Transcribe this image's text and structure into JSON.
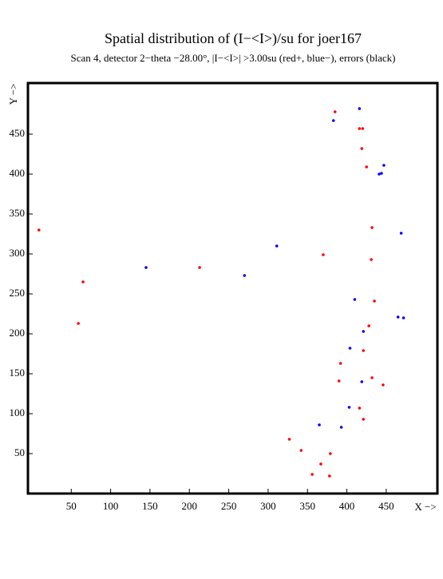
{
  "chart_data": {
    "type": "scatter",
    "title": "Spatial distribution of (I−<I>)/su for joer167",
    "subtitle": "Scan  4, detector 2−theta −28.00°, |I−<I>| >3.00su (red+, blue−), errors (black)",
    "x_label": "X −>",
    "y_label": "Y −>",
    "xlim": [
      -5,
      515
    ],
    "ylim": [
      0,
      514
    ],
    "xticks": [
      50,
      100,
      150,
      200,
      250,
      300,
      350,
      400,
      450
    ],
    "yticks": [
      50,
      100,
      150,
      200,
      250,
      300,
      350,
      400,
      450
    ],
    "grid": false,
    "series": [
      {
        "name": "red+",
        "color": "#ff0000",
        "x": [
          385,
          416,
          420,
          419,
          425,
          9,
          432,
          370,
          431,
          213,
          65,
          435,
          59,
          428,
          421,
          392,
          432,
          390,
          446,
          416,
          421,
          327,
          342,
          379,
          367,
          356,
          378
        ],
        "values": [
          478,
          457,
          457,
          432,
          409,
          330,
          333,
          299,
          293,
          283,
          265,
          241,
          213,
          210,
          179,
          163,
          145,
          141,
          136,
          107,
          93,
          68,
          54,
          50,
          37,
          24,
          22
        ]
      },
      {
        "name": "blue−",
        "color": "#0000ff",
        "x": [
          416,
          383,
          447,
          444,
          441,
          469,
          311,
          145,
          270,
          410,
          465,
          472,
          421,
          404,
          419,
          403,
          365,
          393
        ],
        "values": [
          482,
          467,
          411,
          401,
          400,
          326,
          310,
          283,
          273,
          243,
          221,
          220,
          203,
          182,
          140,
          108,
          86,
          83
        ]
      }
    ]
  }
}
